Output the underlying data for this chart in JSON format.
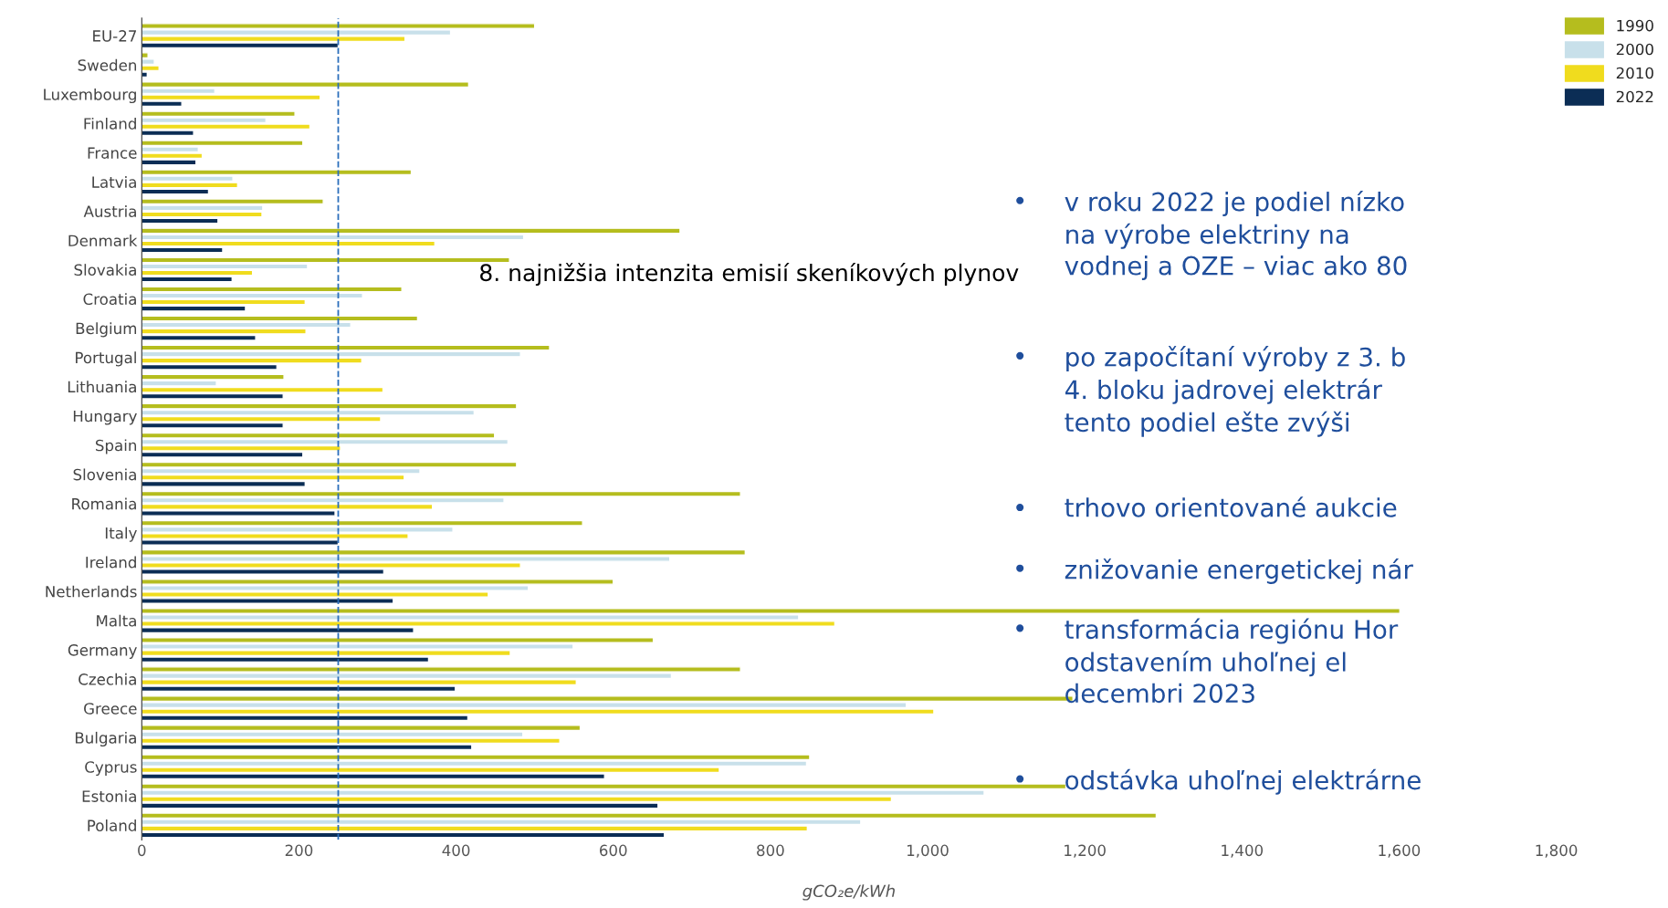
{
  "chart_data": {
    "type": "bar",
    "orientation": "horizontal",
    "xlabel": "gCO₂e/kWh",
    "categories": [
      "EU-27",
      "Sweden",
      "Luxembourg",
      "Finland",
      "France",
      "Latvia",
      "Austria",
      "Denmark",
      "Slovakia",
      "Croatia",
      "Belgium",
      "Portugal",
      "Lithuania",
      "Hungary",
      "Spain",
      "Slovenia",
      "Romania",
      "Italy",
      "Ireland",
      "Netherlands",
      "Malta",
      "Germany",
      "Czechia",
      "Greece",
      "Bulgaria",
      "Cyprus",
      "Estonia",
      "Poland"
    ],
    "series": [
      {
        "name": "1990",
        "color": "#b5bd1e",
        "values": [
          500,
          8,
          416,
          195,
          205,
          343,
          231,
          685,
          468,
          331,
          351,
          519,
          181,
          477,
          449,
          477,
          762,
          561,
          768,
          600,
          1601,
          651,
          762,
          1185,
          558,
          850,
          1176,
          1291
        ]
      },
      {
        "name": "2000",
        "color": "#c8e0ea",
        "values": [
          393,
          16,
          93,
          158,
          72,
          116,
          154,
          486,
          211,
          281,
          266,
          482,
          95,
          423,
          466,
          354,
          461,
          396,
          672,
          492,
          836,
          549,
          674,
          973,
          485,
          846,
          1072,
          915
        ]
      },
      {
        "name": "2010",
        "color": "#f0dc1e",
        "values": [
          335,
          22,
          227,
          214,
          77,
          122,
          153,
          373,
          141,
          208,
          209,
          280,
          307,
          304,
          253,
          334,
          370,
          339,
          482,
          441,
          882,
          469,
          553,
          1008,
          532,
          735,
          954,
          847
        ]
      },
      {
        "name": "2022",
        "color": "#0b2d55",
        "values": [
          250,
          7,
          51,
          66,
          69,
          85,
          97,
          103,
          115,
          132,
          145,
          172,
          180,
          180,
          205,
          208,
          246,
          250,
          308,
          320,
          346,
          365,
          399,
          415,
          420,
          589,
          657,
          665
        ]
      }
    ],
    "xlim": [
      0,
      1800
    ],
    "xticks": [
      0,
      {
        "value": 200,
        "label": "200"
      },
      {
        "value": 400,
        "label": "400"
      },
      {
        "value": 600,
        "label": "600"
      },
      {
        "value": 800,
        "label": "800"
      },
      {
        "value": 1000,
        "label": "1,000"
      },
      {
        "value": 1200,
        "label": "1,200"
      },
      {
        "value": 1400,
        "label": "1,400"
      },
      {
        "value": 1600,
        "label": "1,600"
      },
      {
        "value": 1800,
        "label": "1,800"
      }
    ],
    "ref_lines": [
      {
        "axis": "x",
        "value": 250,
        "color": "#2a6ebb",
        "line_style": "dashed"
      }
    ],
    "grid": false,
    "legend": "top right",
    "annotations": [
      "8. najnižšia intenzita emisií skeníkových plynov",
      "• v roku 2022 je podiel nízko\nna výrobe elektriny na \nvodnej a OZE – viac ako 80",
      "• po započítaní výroby z 3. b\n4. bloku jadrovej elektrár\ntento podiel ešte zvýši",
      "• trhovo orientované aukcie",
      "• znižovanie energetickej nár",
      "• transformácia regiónu Hor\nodstavením uhoľnej el\ndecembri 2023",
      "• odstávka uhoľnej elektrárne"
    ]
  }
}
